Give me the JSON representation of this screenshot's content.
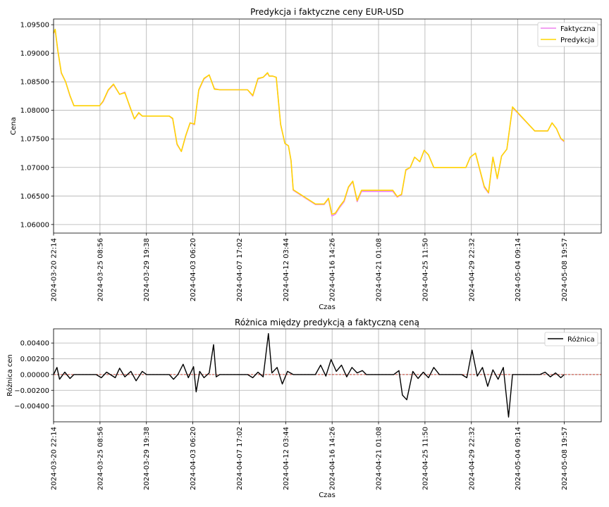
{
  "chart_data": [
    {
      "type": "line",
      "title": "Predykcja i faktyczne ceny EUR-USD",
      "xlabel": "Czas",
      "ylabel": "Cena",
      "ylim": [
        1.0585,
        1.096
      ],
      "xlim": [
        "2024-03-20 22:14",
        "2024-05-12 09:00"
      ],
      "grid": true,
      "legend": "top-right",
      "yticks": [
        1.06,
        1.065,
        1.07,
        1.075,
        1.08,
        1.085,
        1.09,
        1.095
      ],
      "ytick_labels": [
        "1.06000",
        "1.06500",
        "1.07000",
        "1.07500",
        "1.08000",
        "1.08500",
        "1.09000",
        "1.09500"
      ],
      "xticks": [
        "2024-03-20 22:14",
        "2024-03-25 08:56",
        "2024-03-29 19:38",
        "2024-04-03 06:20",
        "2024-04-07 17:02",
        "2024-04-12 03:44",
        "2024-04-16 14:26",
        "2024-04-21 01:08",
        "2024-04-25 11:50",
        "2024-04-29 22:32",
        "2024-05-04 09:14",
        "2024-05-08 19:57"
      ],
      "series": [
        {
          "name": "Faktyczna",
          "color": "#ee82ee",
          "x": [
            "2024-03-20 22:14",
            "2024-03-21 02:00",
            "2024-03-21 08:00",
            "2024-03-21 16:00",
            "2024-03-22 02:00",
            "2024-03-22 12:00",
            "2024-03-22 21:00",
            "2024-03-25 00:00",
            "2024-03-25 08:00",
            "2024-03-25 16:00",
            "2024-03-26 04:00",
            "2024-03-26 16:00",
            "2024-03-27 06:00",
            "2024-03-27 18:00",
            "2024-03-28 06:00",
            "2024-03-28 16:00",
            "2024-03-29 02:00",
            "2024-03-29 10:00",
            "2024-03-29 20:00",
            "2024-04-01 00:00",
            "2024-04-01 08:00",
            "2024-04-01 18:00",
            "2024-04-02 04:00",
            "2024-04-02 14:00",
            "2024-04-03 00:00",
            "2024-04-03 10:00",
            "2024-04-03 20:00",
            "2024-04-04 08:00",
            "2024-04-04 20:00",
            "2024-04-05 08:00",
            "2024-04-05 20:00",
            "2024-04-08 00:00",
            "2024-04-08 12:00",
            "2024-04-09 00:00",
            "2024-04-09 12:00",
            "2024-04-10 00:00",
            "2024-04-10 10:00",
            "2024-04-10 14:00",
            "2024-04-10 22:00",
            "2024-04-11 06:00",
            "2024-04-11 16:00",
            "2024-04-12 02:00",
            "2024-04-12 10:00",
            "2024-04-12 16:00",
            "2024-04-12 21:00",
            "2024-04-15 00:00",
            "2024-04-15 10:00",
            "2024-04-15 20:00",
            "2024-04-16 06:00",
            "2024-04-16 14:00",
            "2024-04-16 22:00",
            "2024-04-17 08:00",
            "2024-04-17 18:00",
            "2024-04-18 04:00",
            "2024-04-18 14:00",
            "2024-04-19 00:00",
            "2024-04-19 10:00",
            "2024-04-19 21:00",
            "2024-04-22 00:00",
            "2024-04-22 10:00",
            "2024-04-22 20:00",
            "2024-04-23 06:00",
            "2024-04-23 16:00",
            "2024-04-24 02:00",
            "2024-04-24 12:00",
            "2024-04-25 00:00",
            "2024-04-25 10:00",
            "2024-04-25 20:00",
            "2024-04-26 08:00",
            "2024-04-26 21:00",
            "2024-04-29 00:00",
            "2024-04-29 10:00",
            "2024-04-29 20:00",
            "2024-04-30 08:00",
            "2024-04-30 18:00",
            "2024-05-01 04:00",
            "2024-05-01 14:00",
            "2024-05-02 00:00",
            "2024-05-02 10:00",
            "2024-05-02 20:00",
            "2024-05-03 08:00",
            "2024-05-03 21:00",
            "2024-05-06 00:00",
            "2024-05-06 10:00",
            "2024-05-06 20:00",
            "2024-05-07 06:00",
            "2024-05-07 16:00",
            "2024-05-08 02:00",
            "2024-05-08 12:00",
            "2024-05-08 19:57"
          ],
          "values": [
            1.0935,
            1.094,
            1.0905,
            1.0865,
            1.085,
            1.0825,
            1.0808,
            1.0808,
            1.0808,
            1.0815,
            1.0835,
            1.0845,
            1.0828,
            1.0832,
            1.0805,
            1.0785,
            1.0795,
            1.079,
            1.079,
            1.079,
            1.0785,
            1.074,
            1.0728,
            1.0755,
            1.0778,
            1.0775,
            1.0835,
            1.0855,
            1.0862,
            1.0838,
            1.0836,
            1.0836,
            1.0836,
            1.0825,
            1.0855,
            1.0858,
            1.0865,
            1.086,
            1.086,
            1.0858,
            1.0775,
            1.0742,
            1.0738,
            1.0712,
            1.066,
            1.0635,
            1.0635,
            1.0635,
            1.0645,
            1.0615,
            1.0618,
            1.063,
            1.064,
            1.0665,
            1.0675,
            1.064,
            1.0658,
            1.0658,
            1.0658,
            1.0658,
            1.0648,
            1.0652,
            1.0695,
            1.07,
            1.0718,
            1.071,
            1.073,
            1.0722,
            1.07,
            1.07,
            1.07,
            1.07,
            1.0718,
            1.0725,
            1.0695,
            1.0665,
            1.0655,
            1.0718,
            1.068,
            1.072,
            1.0732,
            1.0805,
            1.0764,
            1.0764,
            1.0764,
            1.0764,
            1.0778,
            1.0768,
            1.075,
            1.0745
          ]
        },
        {
          "name": "Predykcja",
          "color": "#ffd700",
          "x": [
            "2024-03-20 22:14",
            "2024-03-21 02:00",
            "2024-03-21 08:00",
            "2024-03-21 16:00",
            "2024-03-22 02:00",
            "2024-03-22 12:00",
            "2024-03-22 21:00",
            "2024-03-25 00:00",
            "2024-03-25 08:00",
            "2024-03-25 16:00",
            "2024-03-26 04:00",
            "2024-03-26 16:00",
            "2024-03-27 06:00",
            "2024-03-27 18:00",
            "2024-03-28 06:00",
            "2024-03-28 16:00",
            "2024-03-29 02:00",
            "2024-03-29 10:00",
            "2024-03-29 20:00",
            "2024-04-01 00:00",
            "2024-04-01 08:00",
            "2024-04-01 18:00",
            "2024-04-02 04:00",
            "2024-04-02 14:00",
            "2024-04-03 00:00",
            "2024-04-03 10:00",
            "2024-04-03 20:00",
            "2024-04-04 08:00",
            "2024-04-04 20:00",
            "2024-04-05 08:00",
            "2024-04-05 20:00",
            "2024-04-08 00:00",
            "2024-04-08 12:00",
            "2024-04-09 00:00",
            "2024-04-09 12:00",
            "2024-04-10 00:00",
            "2024-04-10 10:00",
            "2024-04-10 14:00",
            "2024-04-10 22:00",
            "2024-04-11 06:00",
            "2024-04-11 16:00",
            "2024-04-12 02:00",
            "2024-04-12 10:00",
            "2024-04-12 16:00",
            "2024-04-12 21:00",
            "2024-04-15 00:00",
            "2024-04-15 10:00",
            "2024-04-15 20:00",
            "2024-04-16 06:00",
            "2024-04-16 14:00",
            "2024-04-16 22:00",
            "2024-04-17 08:00",
            "2024-04-17 18:00",
            "2024-04-18 04:00",
            "2024-04-18 14:00",
            "2024-04-19 00:00",
            "2024-04-19 10:00",
            "2024-04-19 21:00",
            "2024-04-22 00:00",
            "2024-04-22 10:00",
            "2024-04-22 20:00",
            "2024-04-23 06:00",
            "2024-04-23 16:00",
            "2024-04-24 02:00",
            "2024-04-24 12:00",
            "2024-04-25 00:00",
            "2024-04-25 10:00",
            "2024-04-25 20:00",
            "2024-04-26 08:00",
            "2024-04-26 21:00",
            "2024-04-29 00:00",
            "2024-04-29 10:00",
            "2024-04-29 20:00",
            "2024-04-30 08:00",
            "2024-04-30 18:00",
            "2024-05-01 04:00",
            "2024-05-01 14:00",
            "2024-05-02 00:00",
            "2024-05-02 10:00",
            "2024-05-02 20:00",
            "2024-05-03 08:00",
            "2024-05-03 21:00",
            "2024-05-06 00:00",
            "2024-05-06 10:00",
            "2024-05-06 20:00",
            "2024-05-07 06:00",
            "2024-05-07 16:00",
            "2024-05-08 02:00",
            "2024-05-08 12:00",
            "2024-05-08 19:57"
          ],
          "values": [
            1.0935,
            1.0942,
            1.0905,
            1.0866,
            1.085,
            1.0826,
            1.0808,
            1.0808,
            1.0808,
            1.0816,
            1.0836,
            1.0846,
            1.0828,
            1.0831,
            1.0806,
            1.0785,
            1.0796,
            1.079,
            1.079,
            1.079,
            1.0786,
            1.0741,
            1.0728,
            1.0756,
            1.0778,
            1.0776,
            1.0836,
            1.0856,
            1.0862,
            1.0837,
            1.0836,
            1.0836,
            1.0836,
            1.0826,
            1.0856,
            1.0858,
            1.0866,
            1.086,
            1.086,
            1.0858,
            1.0776,
            1.0742,
            1.0738,
            1.0712,
            1.0661,
            1.0636,
            1.0636,
            1.0636,
            1.0646,
            1.0618,
            1.062,
            1.0632,
            1.0642,
            1.0666,
            1.0676,
            1.0642,
            1.066,
            1.066,
            1.066,
            1.066,
            1.0649,
            1.0653,
            1.0696,
            1.07,
            1.0718,
            1.071,
            1.073,
            1.0722,
            1.07,
            1.07,
            1.07,
            1.07,
            1.0718,
            1.0725,
            1.0696,
            1.0667,
            1.0656,
            1.0718,
            1.0681,
            1.072,
            1.0732,
            1.0806,
            1.0764,
            1.0764,
            1.0764,
            1.0764,
            1.0778,
            1.0768,
            1.0751,
            1.0746
          ]
        }
      ]
    },
    {
      "type": "line",
      "title": "Różnica między predykcją a faktyczną ceną",
      "xlabel": "Czas",
      "ylabel": "Różnica cen",
      "ylim": [
        -0.006,
        0.0058
      ],
      "xlim": [
        "2024-03-20 22:14",
        "2024-05-12 09:00"
      ],
      "grid": true,
      "legend": "top-right",
      "yticks": [
        -0.004,
        -0.002,
        0.0,
        0.002,
        0.004
      ],
      "ytick_labels": [
        "−0.00400",
        "−0.00200",
        "0.00000",
        "0.00200",
        "0.00400"
      ],
      "xticks": [
        "2024-03-20 22:14",
        "2024-03-25 08:56",
        "2024-03-29 19:38",
        "2024-04-03 06:20",
        "2024-04-07 17:02",
        "2024-04-12 03:44",
        "2024-04-16 14:26",
        "2024-04-21 01:08",
        "2024-04-25 11:50",
        "2024-04-29 22:32",
        "2024-05-04 09:14",
        "2024-05-08 19:57"
      ],
      "reference_line": {
        "y": 0.0,
        "color": "#c0392b",
        "style": "dashed"
      },
      "series": [
        {
          "name": "Różnica",
          "color": "#000000",
          "x": [
            "2024-03-20 22:14",
            "2024-03-21 06:00",
            "2024-03-21 12:00",
            "2024-03-22 00:00",
            "2024-03-22 12:00",
            "2024-03-22 21:00",
            "2024-03-25 00:00",
            "2024-03-25 12:00",
            "2024-03-26 00:00",
            "2024-03-26 20:00",
            "2024-03-27 06:00",
            "2024-03-27 18:00",
            "2024-03-28 08:00",
            "2024-03-28 20:00",
            "2024-03-29 10:00",
            "2024-03-29 20:00",
            "2024-04-01 00:00",
            "2024-04-01 10:00",
            "2024-04-01 20:00",
            "2024-04-02 08:00",
            "2024-04-02 20:00",
            "2024-04-03 08:00",
            "2024-04-03 14:00",
            "2024-04-03 22:00",
            "2024-04-04 08:00",
            "2024-04-04 20:00",
            "2024-04-05 06:00",
            "2024-04-05 12:00",
            "2024-04-05 20:00",
            "2024-04-08 00:00",
            "2024-04-08 12:00",
            "2024-04-09 00:00",
            "2024-04-09 12:00",
            "2024-04-10 00:00",
            "2024-04-10 12:00",
            "2024-04-10 20:00",
            "2024-04-11 08:00",
            "2024-04-11 20:00",
            "2024-04-12 08:00",
            "2024-04-12 21:00",
            "2024-04-15 00:00",
            "2024-04-15 12:00",
            "2024-04-16 00:00",
            "2024-04-16 12:00",
            "2024-04-17 00:00",
            "2024-04-17 12:00",
            "2024-04-18 00:00",
            "2024-04-18 12:00",
            "2024-04-19 00:00",
            "2024-04-19 12:00",
            "2024-04-19 21:00",
            "2024-04-22 00:00",
            "2024-04-22 12:00",
            "2024-04-23 00:00",
            "2024-04-23 08:00",
            "2024-04-23 18:00",
            "2024-04-24 08:00",
            "2024-04-24 20:00",
            "2024-04-25 08:00",
            "2024-04-25 20:00",
            "2024-04-26 08:00",
            "2024-04-26 21:00",
            "2024-04-29 00:00",
            "2024-04-29 12:00",
            "2024-04-30 00:00",
            "2024-04-30 12:00",
            "2024-05-01 00:00",
            "2024-05-01 12:00",
            "2024-05-02 00:00",
            "2024-05-02 12:00",
            "2024-05-03 00:00",
            "2024-05-03 12:00",
            "2024-05-03 21:00",
            "2024-05-06 00:00",
            "2024-05-06 12:00",
            "2024-05-07 00:00",
            "2024-05-07 12:00",
            "2024-05-08 00:00",
            "2024-05-08 12:00",
            "2024-05-08 19:57"
          ],
          "values": [
            0.0,
            0.0009,
            -0.0006,
            0.0003,
            -0.0005,
            0.0,
            0.0,
            -0.0004,
            0.0003,
            -0.0004,
            0.0008,
            -0.0003,
            0.0004,
            -0.0008,
            0.0004,
            0.0,
            0.0,
            -0.0006,
            0.0,
            0.0013,
            -0.0004,
            0.001,
            -0.0022,
            0.0004,
            -0.0004,
            0.0002,
            0.0038,
            -0.0003,
            0.0,
            0.0,
            0.0,
            -0.0004,
            0.0003,
            -0.0003,
            0.0052,
            0.0002,
            0.0009,
            -0.0012,
            0.0004,
            0.0,
            0.0,
            0.0012,
            -0.0002,
            0.0019,
            0.0004,
            0.0012,
            -0.0003,
            0.0009,
            0.0002,
            0.0005,
            0.0,
            0.0,
            0.0,
            0.0005,
            -0.0026,
            -0.0032,
            0.0004,
            -0.0005,
            0.0003,
            -0.0004,
            0.0009,
            0.0,
            0.0,
            -0.0004,
            0.0031,
            -0.0002,
            0.0009,
            -0.0015,
            0.0006,
            -0.0006,
            0.0009,
            -0.0054,
            0.0,
            0.0,
            0.0,
            0.0003,
            -0.0003,
            0.0002,
            -0.0004,
            0.0
          ]
        }
      ]
    }
  ]
}
